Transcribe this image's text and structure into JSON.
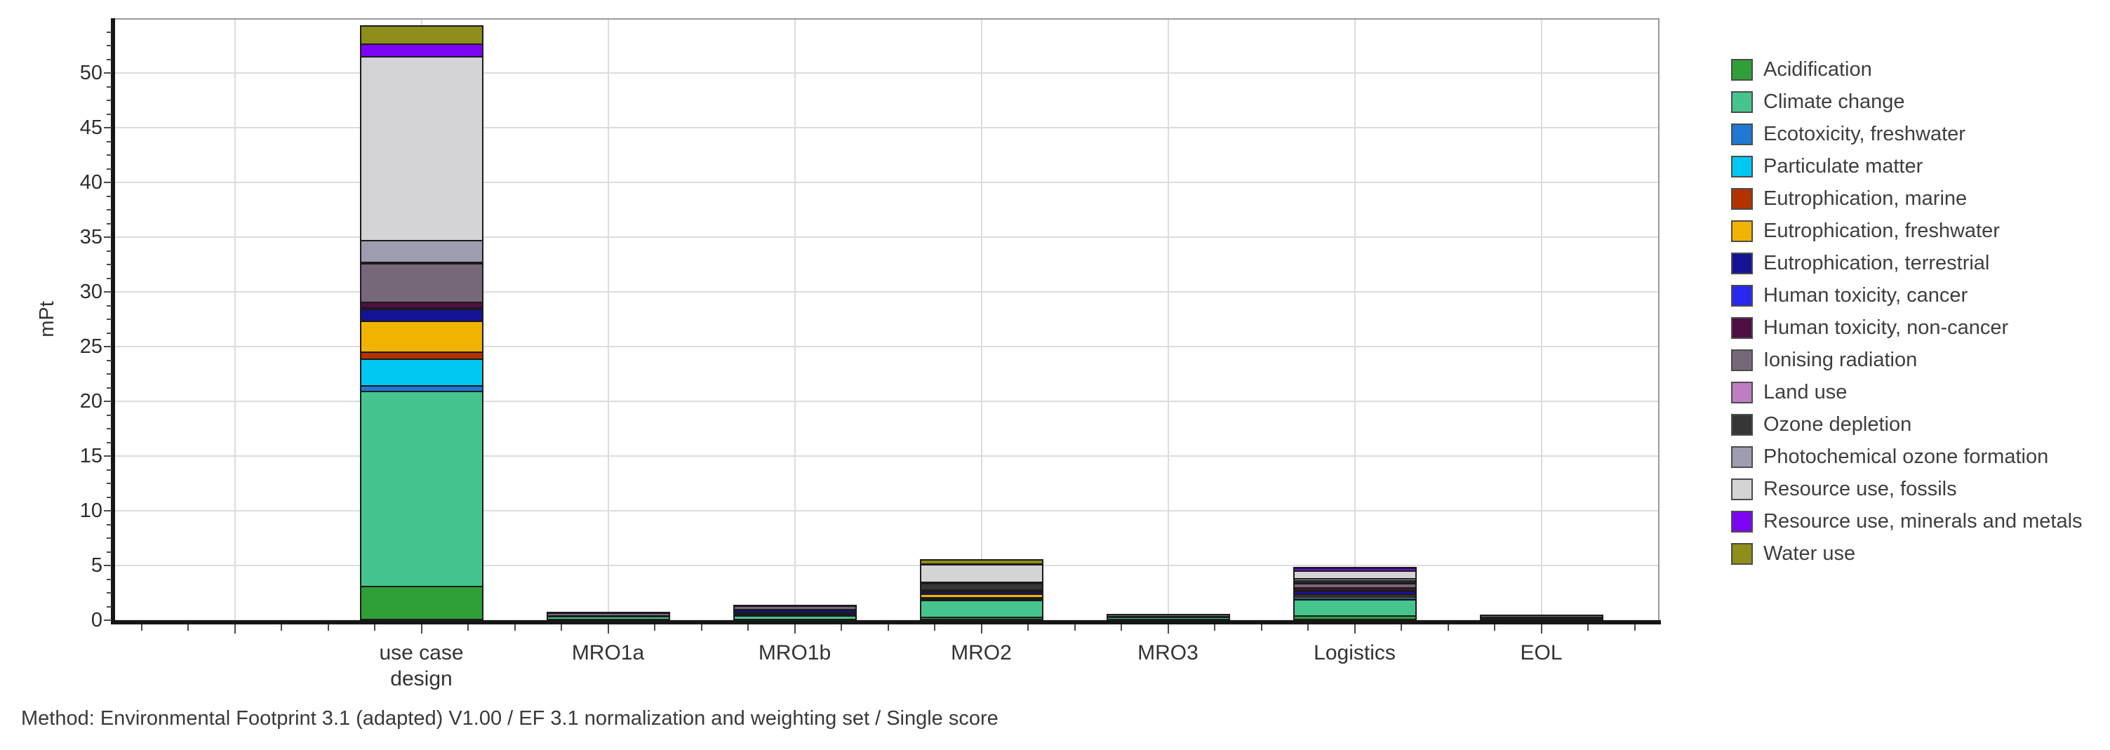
{
  "figure": {
    "footer": "Method: Environmental Footprint 3.1 (adapted) V1.00 / EF 3.1 normalization and weighting set / Single score"
  },
  "chart_data": {
    "type": "bar",
    "stacked": true,
    "title": "",
    "xlabel": "",
    "ylabel": "mPt",
    "ylim": [
      0,
      55
    ],
    "yticks": [
      0,
      5,
      10,
      15,
      20,
      25,
      30,
      35,
      40,
      45,
      50
    ],
    "grid": true,
    "legend_position": "right",
    "leading_empty_slot": true,
    "categories": [
      "use case\ndesign",
      "MRO1a",
      "MRO1b",
      "MRO2",
      "MRO3",
      "Logistics",
      "EOL"
    ],
    "series": [
      {
        "name": "Acidification",
        "color": "#2FA038",
        "values": [
          3.1,
          0.05,
          0.05,
          0.25,
          0.02,
          0.4,
          0
        ]
      },
      {
        "name": "Climate change",
        "color": "#45C58D",
        "values": [
          17.8,
          0.25,
          0.35,
          1.55,
          0.25,
          1.45,
          0.02
        ]
      },
      {
        "name": "Ecotoxicity, freshwater",
        "color": "#1F79D4",
        "values": [
          0.5,
          0.02,
          0.1,
          0.05,
          0.02,
          0.1,
          0.2
        ]
      },
      {
        "name": "Particulate matter",
        "color": "#00C8F2",
        "values": [
          2.45,
          0.05,
          0.15,
          0.15,
          0.02,
          0.15,
          0.02
        ]
      },
      {
        "name": "Eutrophication, marine",
        "color": "#B23200",
        "values": [
          0.65,
          0,
          0,
          0.05,
          0,
          0.2,
          0
        ]
      },
      {
        "name": "Eutrophication, freshwater",
        "color": "#F0B400",
        "values": [
          2.8,
          0,
          0,
          0.3,
          0,
          0.02,
          0
        ]
      },
      {
        "name": "Eutrophication, terrestrial",
        "color": "#131394",
        "values": [
          1.1,
          0,
          0.25,
          0.2,
          0,
          0.3,
          0
        ]
      },
      {
        "name": "Human toxicity, cancer",
        "color": "#2828F0",
        "values": [
          0.1,
          0,
          0,
          0.03,
          0,
          0.05,
          0
        ]
      },
      {
        "name": "Human toxicity, non-cancer",
        "color": "#500F42",
        "values": [
          0.55,
          0,
          0.05,
          0.07,
          0,
          0.25,
          0
        ]
      },
      {
        "name": "Ionising radiation",
        "color": "#766879",
        "values": [
          3.5,
          0.3,
          0.35,
          0.1,
          0.2,
          0.4,
          0.2
        ]
      },
      {
        "name": "Land use",
        "color": "#BE7FC2",
        "values": [
          0.07,
          0.02,
          0.02,
          0.02,
          0.02,
          0.05,
          0.02
        ]
      },
      {
        "name": "Ozone depletion",
        "color": "#363636",
        "values": [
          0.08,
          0,
          0,
          0.58,
          0,
          0.25,
          0
        ]
      },
      {
        "name": "Photochemical ozone formation",
        "color": "#9E9DAF",
        "values": [
          2.0,
          0,
          0,
          0.1,
          0,
          0.15,
          0
        ]
      },
      {
        "name": "Resource use, fossils",
        "color": "#D4D4D6",
        "values": [
          16.8,
          0,
          0,
          1.6,
          0,
          0.75,
          0
        ]
      },
      {
        "name": "Resource use, minerals and metals",
        "color": "#7C04F4",
        "values": [
          1.1,
          0,
          0,
          0.05,
          0,
          0.25,
          0
        ]
      },
      {
        "name": "Water use",
        "color": "#8E8E1A",
        "values": [
          1.7,
          0,
          0,
          0.4,
          0,
          0.05,
          0
        ]
      }
    ],
    "style": {
      "grid_color": "#dcdcdc",
      "axis_color": "#161616",
      "plot_border_color": "#9a9a9a",
      "segment_outline_color": "#1b1b1b",
      "text_color": "#333333"
    }
  }
}
